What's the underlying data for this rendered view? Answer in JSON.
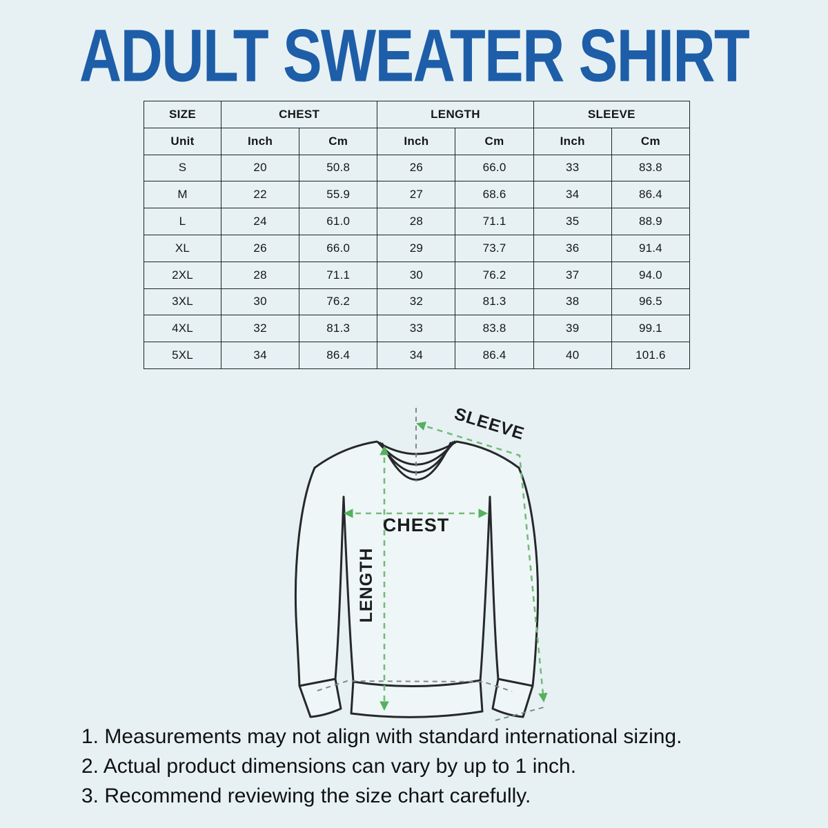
{
  "page": {
    "title": "ADULT SWEATER SHIRT",
    "title_color": "#1e5ea8",
    "background_color": "#e7f1f4",
    "accent_green": "#55b15c",
    "dash_green": "#74bb78",
    "dash_gray": "#7b8a88"
  },
  "size_chart": {
    "header": {
      "size": "SIZE",
      "chest": "CHEST",
      "length": "LENGTH",
      "sleeve": "SLEEVE"
    },
    "units": [
      "Unit",
      "Inch",
      "Cm",
      "Inch",
      "Cm",
      "Inch",
      "Cm"
    ],
    "rows": [
      [
        "S",
        "20",
        "50.8",
        "26",
        "66.0",
        "33",
        "83.8"
      ],
      [
        "M",
        "22",
        "55.9",
        "27",
        "68.6",
        "34",
        "86.4"
      ],
      [
        "L",
        "24",
        "61.0",
        "28",
        "71.1",
        "35",
        "88.9"
      ],
      [
        "XL",
        "26",
        "66.0",
        "29",
        "73.7",
        "36",
        "91.4"
      ],
      [
        "2XL",
        "28",
        "71.1",
        "30",
        "76.2",
        "37",
        "94.0"
      ],
      [
        "3XL",
        "30",
        "76.2",
        "32",
        "81.3",
        "38",
        "96.5"
      ],
      [
        "4XL",
        "32",
        "81.3",
        "33",
        "83.8",
        "39",
        "99.1"
      ],
      [
        "5XL",
        "34",
        "86.4",
        "34",
        "86.4",
        "40",
        "101.6"
      ]
    ]
  },
  "diagram": {
    "labels": {
      "chest": "CHEST",
      "length": "LENGTH",
      "sleeve": "SLEEVE"
    }
  },
  "notes": [
    "1. Measurements may not align with standard international sizing.",
    "2. Actual product dimensions can vary by up to 1 inch.",
    "3. Recommend reviewing the size chart carefully."
  ]
}
